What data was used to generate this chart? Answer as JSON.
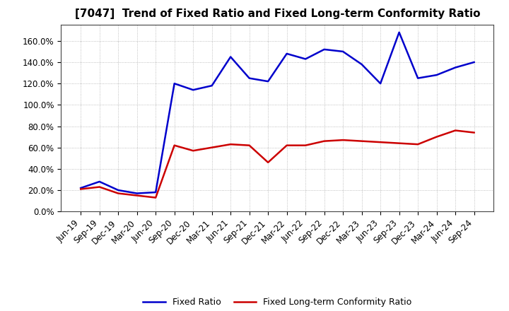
{
  "title": "[7047]  Trend of Fixed Ratio and Fixed Long-term Conformity Ratio",
  "labels": [
    "Jun-19",
    "Sep-19",
    "Dec-19",
    "Mar-20",
    "Jun-20",
    "Sep-20",
    "Dec-20",
    "Mar-21",
    "Jun-21",
    "Sep-21",
    "Dec-21",
    "Mar-22",
    "Jun-22",
    "Sep-22",
    "Dec-22",
    "Mar-23",
    "Jun-23",
    "Sep-23",
    "Dec-23",
    "Mar-24",
    "Jun-24",
    "Sep-24"
  ],
  "fixed_ratio": [
    22.0,
    28.0,
    20.0,
    17.0,
    18.0,
    120.0,
    114.0,
    118.0,
    145.0,
    125.0,
    122.0,
    148.0,
    143.0,
    152.0,
    150.0,
    138.0,
    120.0,
    168.0,
    125.0,
    128.0,
    135.0,
    140.0
  ],
  "fixed_lt_ratio": [
    21.0,
    23.0,
    17.0,
    15.0,
    13.0,
    62.0,
    57.0,
    60.0,
    63.0,
    62.0,
    46.0,
    62.0,
    62.0,
    66.0,
    67.0,
    66.0,
    65.0,
    64.0,
    63.0,
    70.0,
    76.0,
    74.0
  ],
  "fixed_ratio_color": "#0000cc",
  "fixed_lt_ratio_color": "#cc0000",
  "background_color": "#ffffff",
  "plot_background": "#ffffff",
  "grid_color": "#999999",
  "ylim": [
    0,
    175
  ],
  "yticks": [
    0,
    20,
    40,
    60,
    80,
    100,
    120,
    140,
    160
  ],
  "legend_fixed": "Fixed Ratio",
  "legend_lt": "Fixed Long-term Conformity Ratio",
  "title_fontsize": 11,
  "tick_fontsize": 8.5,
  "legend_fontsize": 9
}
